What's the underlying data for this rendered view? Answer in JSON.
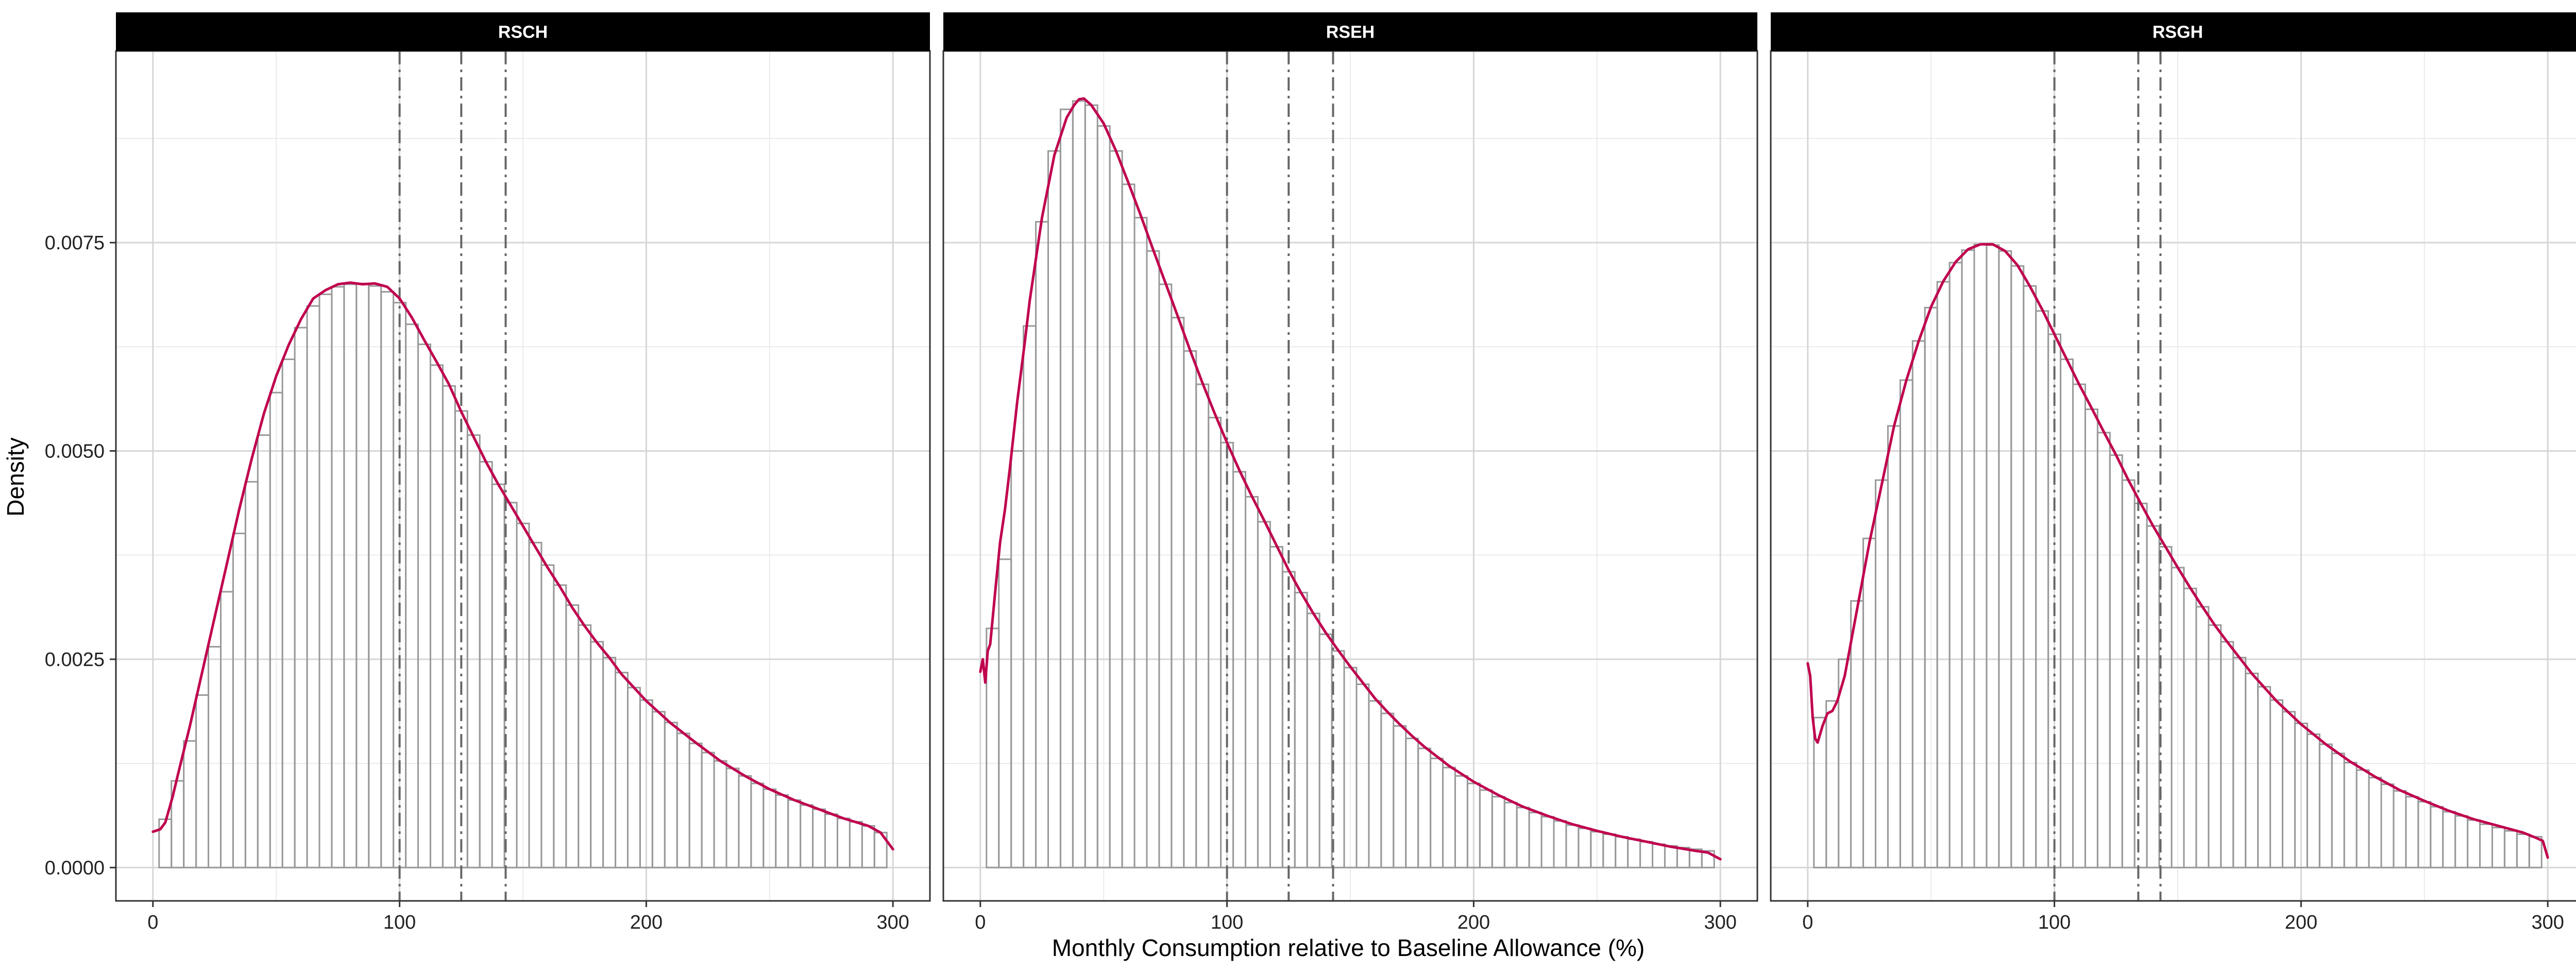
{
  "chart_data": {
    "type": "histogram",
    "xlabel": "Monthly Consumption relative to Baseline Allowance (%)",
    "ylabel": "Density",
    "xlim": [
      -15,
      315
    ],
    "ylim": [
      -0.0004,
      0.0098
    ],
    "x_ticks": [
      0,
      100,
      200,
      300
    ],
    "y_ticks": [
      0.0,
      0.0025,
      0.005,
      0.0075
    ],
    "y_tick_labels": [
      "0.0000",
      "0.0025",
      "0.0050",
      "0.0075"
    ],
    "bin_width": 5,
    "grid": true,
    "bar_outline_color": "#999999",
    "density_color": "#C0004E",
    "vline_color": "#666666",
    "panels": [
      {
        "name": "RSCH",
        "vlines": [
          100,
          125,
          143
        ],
        "bin_centers": [
          5,
          10,
          15,
          20,
          25,
          30,
          35,
          40,
          45,
          50,
          55,
          60,
          65,
          70,
          75,
          80,
          85,
          90,
          95,
          100,
          105,
          110,
          115,
          120,
          125,
          130,
          135,
          140,
          145,
          150,
          155,
          160,
          165,
          170,
          175,
          180,
          185,
          190,
          195,
          200,
          205,
          210,
          215,
          220,
          225,
          230,
          235,
          240,
          245,
          250,
          255,
          260,
          265,
          270,
          275,
          280,
          285,
          290,
          295
        ],
        "bar_heights": [
          0.00058,
          0.00104,
          0.00152,
          0.00207,
          0.00265,
          0.00331,
          0.00401,
          0.00463,
          0.00519,
          0.0057,
          0.0061,
          0.00648,
          0.00674,
          0.00688,
          0.00697,
          0.007,
          0.00701,
          0.00698,
          0.00691,
          0.00678,
          0.00652,
          0.00628,
          0.00603,
          0.00578,
          0.00548,
          0.00519,
          0.00487,
          0.0046,
          0.00438,
          0.00413,
          0.0039,
          0.00363,
          0.00339,
          0.00315,
          0.00291,
          0.00271,
          0.00252,
          0.00234,
          0.00216,
          0.00201,
          0.00187,
          0.00174,
          0.00161,
          0.00149,
          0.00138,
          0.00128,
          0.00119,
          0.0011,
          0.00101,
          0.00094,
          0.00087,
          0.00081,
          0.00075,
          0.0007,
          0.00064,
          0.00059,
          0.00055,
          0.0005,
          0.00042
        ],
        "density_x": [
          0,
          3,
          5,
          8,
          10,
          15,
          20,
          25,
          30,
          35,
          40,
          45,
          50,
          55,
          60,
          65,
          70,
          75,
          80,
          85,
          90,
          95,
          100,
          105,
          110,
          115,
          120,
          125,
          130,
          135,
          140,
          145,
          150,
          155,
          160,
          165,
          170,
          175,
          180,
          185,
          190,
          195,
          200,
          210,
          220,
          230,
          240,
          250,
          260,
          270,
          280,
          290,
          295,
          300
        ],
        "density_y": [
          0.00043,
          0.00046,
          0.00054,
          0.00085,
          0.0011,
          0.0017,
          0.00235,
          0.003,
          0.00365,
          0.0043,
          0.0049,
          0.00545,
          0.0059,
          0.00627,
          0.00658,
          0.00683,
          0.00693,
          0.007,
          0.00702,
          0.007,
          0.00701,
          0.00697,
          0.00683,
          0.0066,
          0.00633,
          0.00607,
          0.0058,
          0.00547,
          0.00517,
          0.00487,
          0.0046,
          0.00435,
          0.0041,
          0.00385,
          0.0036,
          0.00337,
          0.00312,
          0.0029,
          0.0027,
          0.00252,
          0.00232,
          0.00216,
          0.002,
          0.00173,
          0.0015,
          0.00128,
          0.0011,
          0.00094,
          0.00081,
          0.0007,
          0.00059,
          0.0005,
          0.00042,
          0.00022
        ]
      },
      {
        "name": "RSEH",
        "vlines": [
          100,
          125,
          143
        ],
        "bin_centers": [
          5,
          10,
          15,
          20,
          25,
          30,
          35,
          40,
          45,
          50,
          55,
          60,
          65,
          70,
          75,
          80,
          85,
          90,
          95,
          100,
          105,
          110,
          115,
          120,
          125,
          130,
          135,
          140,
          145,
          150,
          155,
          160,
          165,
          170,
          175,
          180,
          185,
          190,
          195,
          200,
          205,
          210,
          215,
          220,
          225,
          230,
          235,
          240,
          245,
          250,
          255,
          260,
          265,
          270,
          275,
          280,
          285,
          290,
          295
        ],
        "bar_heights": [
          0.00287,
          0.0037,
          0.005,
          0.0065,
          0.00775,
          0.0086,
          0.0091,
          0.0092,
          0.00915,
          0.0089,
          0.0086,
          0.0082,
          0.0078,
          0.0074,
          0.007,
          0.0066,
          0.0062,
          0.0058,
          0.0054,
          0.0051,
          0.00475,
          0.00445,
          0.00415,
          0.00385,
          0.00355,
          0.0033,
          0.00305,
          0.0028,
          0.0026,
          0.0024,
          0.0022,
          0.002,
          0.00185,
          0.0017,
          0.00155,
          0.00143,
          0.00131,
          0.0012,
          0.0011,
          0.00101,
          0.00093,
          0.00085,
          0.00078,
          0.00072,
          0.00066,
          0.00061,
          0.00056,
          0.00051,
          0.00047,
          0.00043,
          0.0004,
          0.00037,
          0.00034,
          0.00031,
          0.00028,
          0.00026,
          0.00024,
          0.00022,
          0.0002
        ],
        "density_x": [
          0,
          1,
          2,
          3,
          4,
          6,
          8,
          10,
          12,
          15,
          18,
          20,
          25,
          30,
          35,
          38,
          40,
          42,
          45,
          50,
          55,
          60,
          65,
          70,
          75,
          80,
          85,
          90,
          95,
          100,
          105,
          110,
          115,
          120,
          125,
          130,
          135,
          140,
          145,
          150,
          155,
          160,
          165,
          170,
          175,
          180,
          190,
          200,
          210,
          220,
          230,
          240,
          250,
          260,
          270,
          280,
          290,
          295,
          300
        ],
        "density_y": [
          0.00235,
          0.0025,
          0.00222,
          0.0026,
          0.00268,
          0.0033,
          0.0039,
          0.0043,
          0.0048,
          0.0056,
          0.0063,
          0.0068,
          0.0078,
          0.00855,
          0.009,
          0.00915,
          0.00922,
          0.00923,
          0.00915,
          0.00893,
          0.0086,
          0.00822,
          0.00783,
          0.00742,
          0.00702,
          0.00662,
          0.00621,
          0.00582,
          0.00545,
          0.0051,
          0.00477,
          0.00446,
          0.00417,
          0.00387,
          0.00357,
          0.0033,
          0.00305,
          0.00282,
          0.00261,
          0.00241,
          0.00222,
          0.00203,
          0.00187,
          0.00172,
          0.00158,
          0.00145,
          0.00122,
          0.00103,
          0.00087,
          0.00073,
          0.00062,
          0.00052,
          0.00044,
          0.00037,
          0.00031,
          0.00025,
          0.0002,
          0.00018,
          0.0001
        ]
      },
      {
        "name": "RSGH",
        "vlines": [
          100,
          134,
          143
        ],
        "bin_centers": [
          5,
          10,
          15,
          20,
          25,
          30,
          35,
          40,
          45,
          50,
          55,
          60,
          65,
          70,
          75,
          80,
          85,
          90,
          95,
          100,
          105,
          110,
          115,
          120,
          125,
          130,
          135,
          140,
          145,
          150,
          155,
          160,
          165,
          170,
          175,
          180,
          185,
          190,
          195,
          200,
          205,
          210,
          215,
          220,
          225,
          230,
          235,
          240,
          245,
          250,
          255,
          260,
          265,
          270,
          275,
          280,
          285,
          290,
          295
        ],
        "bar_heights": [
          0.0018,
          0.002,
          0.0025,
          0.0032,
          0.00395,
          0.00465,
          0.0053,
          0.00585,
          0.00632,
          0.00672,
          0.00703,
          0.00726,
          0.00741,
          0.00748,
          0.00747,
          0.0074,
          0.00722,
          0.00698,
          0.00668,
          0.0064,
          0.0061,
          0.0058,
          0.0055,
          0.00522,
          0.00495,
          0.00465,
          0.00437,
          0.0041,
          0.00385,
          0.0036,
          0.00335,
          0.00313,
          0.00291,
          0.00271,
          0.00252,
          0.00233,
          0.00217,
          0.00201,
          0.00187,
          0.00173,
          0.0016,
          0.00148,
          0.00137,
          0.00126,
          0.00117,
          0.00108,
          0.001,
          0.00092,
          0.00085,
          0.00079,
          0.00073,
          0.00067,
          0.00062,
          0.00057,
          0.00052,
          0.00048,
          0.00044,
          0.0004,
          0.00037
        ],
        "density_x": [
          0,
          1,
          2,
          3,
          4,
          5,
          6,
          8,
          10,
          12,
          15,
          20,
          25,
          30,
          35,
          40,
          45,
          50,
          55,
          60,
          65,
          70,
          75,
          80,
          85,
          90,
          95,
          100,
          105,
          110,
          115,
          120,
          125,
          130,
          135,
          140,
          145,
          150,
          155,
          160,
          165,
          170,
          175,
          180,
          190,
          200,
          210,
          220,
          230,
          240,
          250,
          260,
          270,
          280,
          290,
          295,
          298,
          300
        ],
        "density_y": [
          0.00245,
          0.0023,
          0.0018,
          0.00155,
          0.0015,
          0.0016,
          0.0017,
          0.00185,
          0.00188,
          0.002,
          0.0023,
          0.0031,
          0.0039,
          0.0046,
          0.0053,
          0.00585,
          0.00632,
          0.00673,
          0.00704,
          0.00727,
          0.00742,
          0.00748,
          0.00748,
          0.0074,
          0.00723,
          0.00698,
          0.0067,
          0.0064,
          0.0061,
          0.0058,
          0.00552,
          0.00523,
          0.00495,
          0.00465,
          0.00437,
          0.0041,
          0.00385,
          0.0036,
          0.00336,
          0.00313,
          0.00291,
          0.00271,
          0.00252,
          0.00233,
          0.002,
          0.00172,
          0.00148,
          0.00127,
          0.00109,
          0.00093,
          0.0008,
          0.00068,
          0.00058,
          0.0005,
          0.00042,
          0.00036,
          0.00032,
          0.00012
        ]
      }
    ]
  }
}
